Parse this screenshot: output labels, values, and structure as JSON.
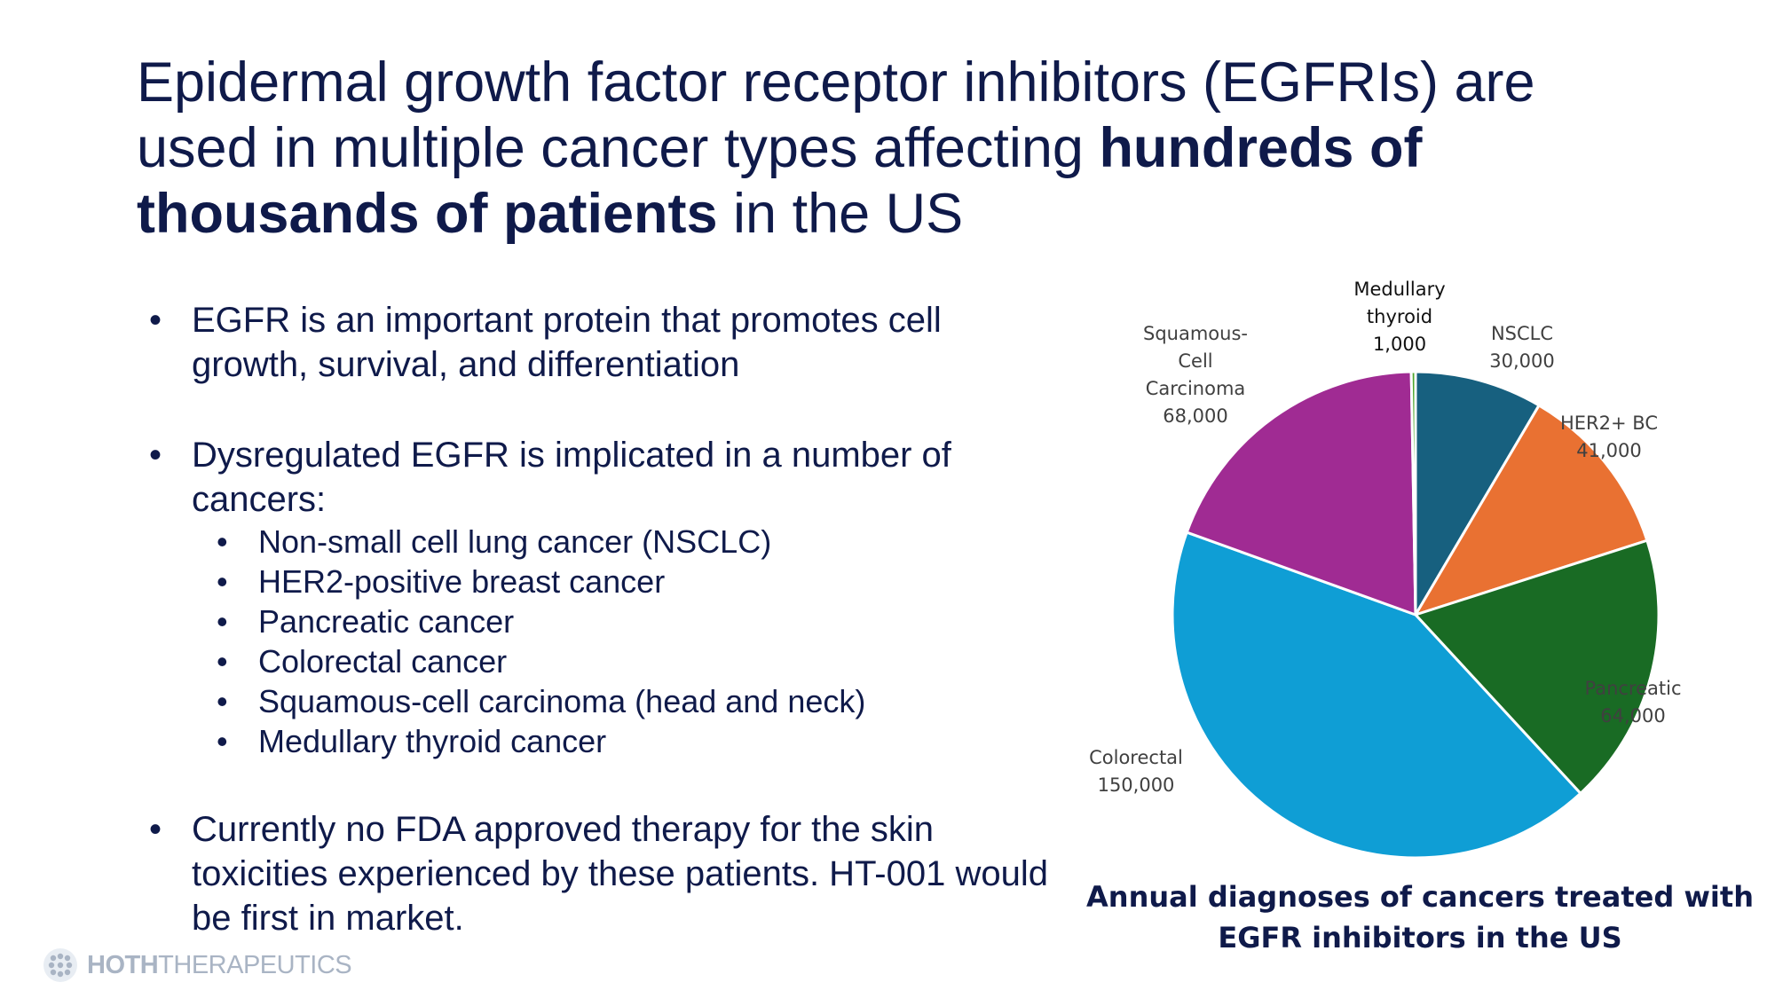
{
  "title": {
    "part1": "Epidermal growth factor receptor inhibitors (EGFRIs) are used in multiple cancer types affecting ",
    "bold1": "hundreds of thousands of patients",
    "part2": " in the US"
  },
  "bullets": {
    "b1": "EGFR is an important protein that promotes cell growth, survival, and differentiation",
    "b2": "Dysregulated EGFR is implicated in a number of cancers:",
    "sub": [
      "Non-small cell lung cancer (NSCLC)",
      "HER2-positive breast cancer",
      "Pancreatic cancer",
      "Colorectal cancer",
      "Squamous-cell carcinoma (head and neck)",
      "Medullary thyroid cancer"
    ],
    "b3": "Currently no FDA approved therapy for the skin toxicities experienced by these patients. HT-001 would be first in market."
  },
  "chart_data": {
    "type": "pie",
    "title": "Annual diagnoses of cancers treated with EGFR inhibitors in the US",
    "start_angle_deg": 0,
    "direction": "clockwise",
    "slices": [
      {
        "name": "NSCLC",
        "value": 30000,
        "label_lines": [
          "NSCLC",
          "30,000"
        ],
        "color": "#17607f"
      },
      {
        "name": "HER2+ BC",
        "value": 41000,
        "label_lines": [
          "HER2+ BC",
          "41,000"
        ],
        "color": "#e97132"
      },
      {
        "name": "Pancreatic",
        "value": 64000,
        "label_lines": [
          "Pancreatic",
          "64,000"
        ],
        "color": "#196b24"
      },
      {
        "name": "Colorectal",
        "value": 150000,
        "label_lines": [
          "Colorectal",
          "150,000"
        ],
        "color": "#0f9ed5"
      },
      {
        "name": "Squamous-Cell Carcinoma",
        "value": 68000,
        "label_lines": [
          "Squamous-",
          "Cell",
          "Carcinoma",
          "68,000"
        ],
        "color": "#a02b93"
      },
      {
        "name": "Medullary thyroid",
        "value": 1000,
        "label_lines": [
          "Medullary",
          "thyroid",
          "1,000"
        ],
        "color": "#4ea72e"
      }
    ]
  },
  "logo": {
    "bold": "HOTH",
    "rest": "THERAPEUTICS"
  }
}
